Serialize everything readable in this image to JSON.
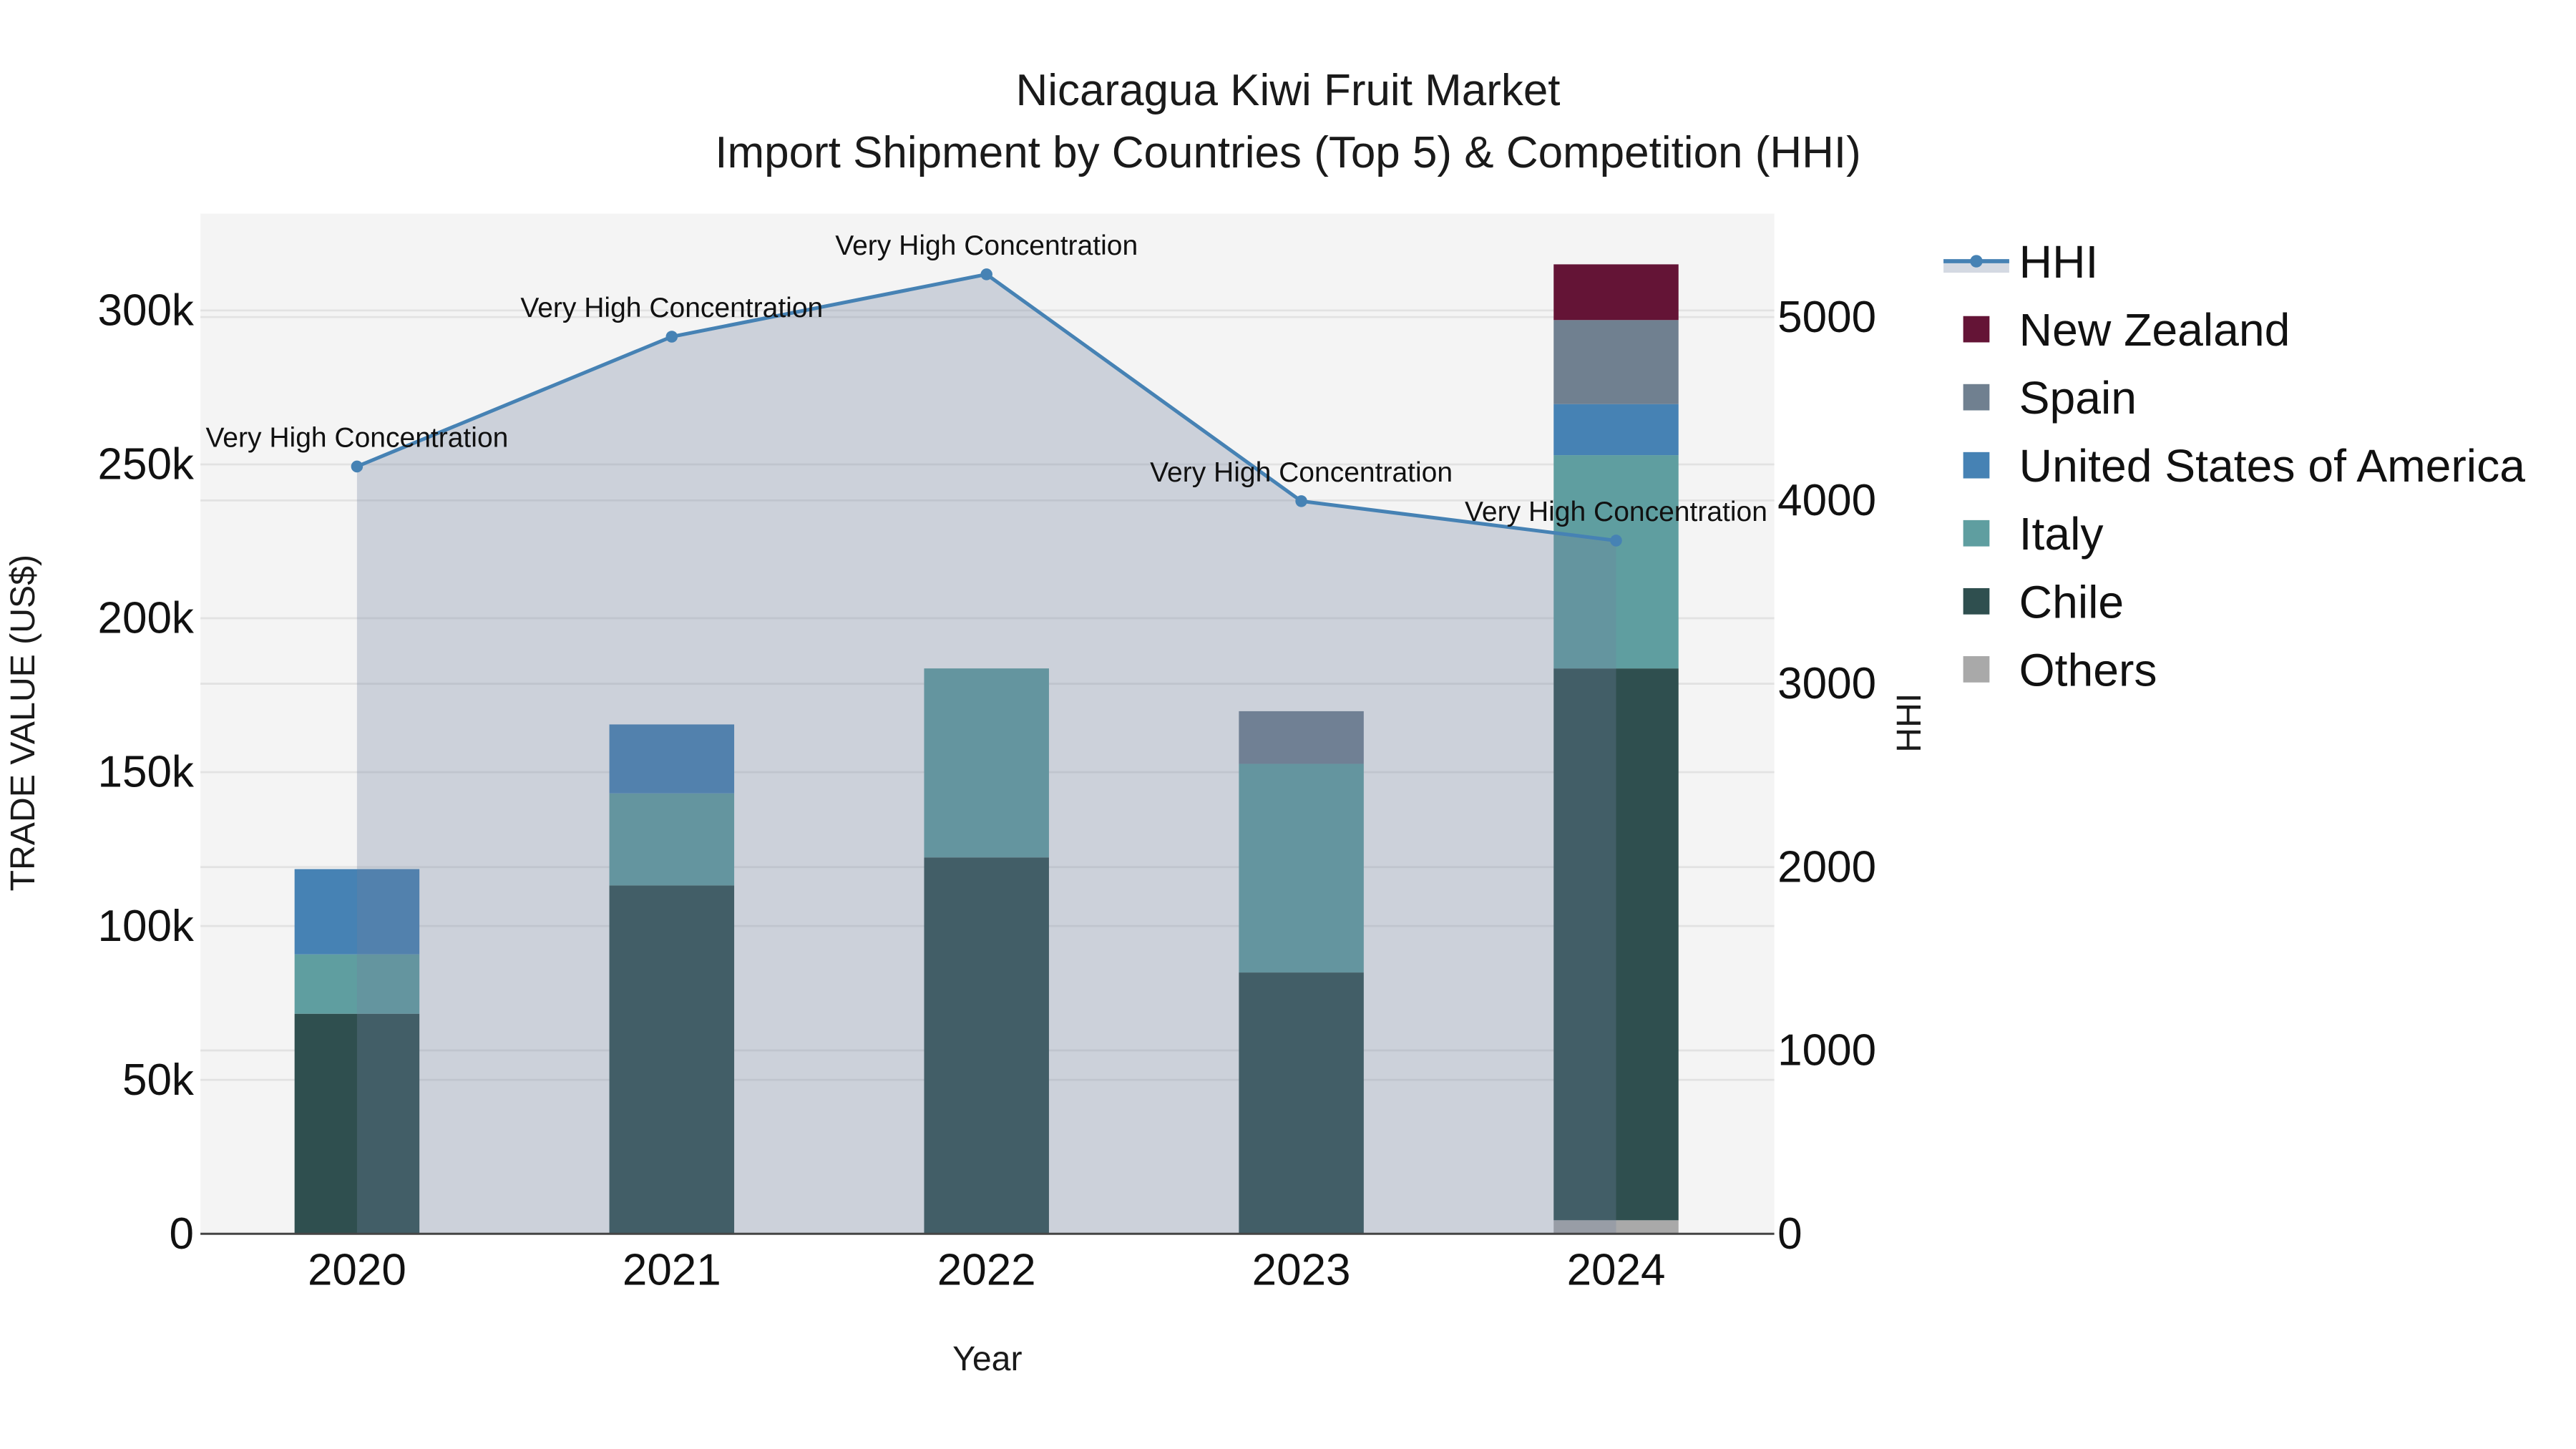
{
  "chart_data": {
    "type": "bar",
    "subtype": "stacked bar with secondary-axis line/area",
    "title": "Nicaragua Kiwi Fruit Market",
    "subtitle": "Import Shipment by Countries (Top 5) & Competition (HHI)",
    "xlabel": "Year",
    "ylabel": "TRADE VALUE (US$)",
    "y2label": "HHI",
    "categories": [
      "2020",
      "2021",
      "2022",
      "2023",
      "2024"
    ],
    "ylim": [
      0,
      330000
    ],
    "y_ticks": [
      0,
      50000,
      100000,
      150000,
      200000,
      250000,
      300000
    ],
    "y_tick_labels": [
      "0",
      "50k",
      "100k",
      "150k",
      "200k",
      "250k",
      "300k"
    ],
    "y2lim": [
      0,
      5560
    ],
    "y2_ticks": [
      0,
      1000,
      2000,
      3000,
      4000,
      5000
    ],
    "y2_tick_labels": [
      "0",
      "1000",
      "2000",
      "3000",
      "4000",
      "5000"
    ],
    "grid": true,
    "legend_position": "right",
    "series": [
      {
        "name": "Others",
        "color": "#a9a9a9",
        "values": [
          0,
          0,
          0,
          0,
          4400
        ]
      },
      {
        "name": "Chile",
        "color": "#2f4f4f",
        "values": [
          71500,
          113200,
          122300,
          84900,
          179300
        ]
      },
      {
        "name": "Italy",
        "color": "#5f9ea0",
        "values": [
          19300,
          29900,
          61400,
          67800,
          69300
        ]
      },
      {
        "name": "United States of America",
        "color": "#4682b4",
        "values": [
          27700,
          22400,
          0,
          0,
          16600
        ]
      },
      {
        "name": "Spain",
        "color": "#708090",
        "values": [
          0,
          0,
          0,
          17100,
          27300
        ]
      },
      {
        "name": "New Zealand",
        "color": "#641436",
        "values": [
          0,
          0,
          0,
          0,
          18100
        ]
      }
    ],
    "line_series": {
      "name": "HHI",
      "axis": "right",
      "color": "#4682b4",
      "fill_color": "rgba(112,128,160,0.30)",
      "values": [
        4185,
        4893,
        5233,
        3996,
        3781
      ],
      "annotations": [
        "Very High Concentration",
        "Very High Concentration",
        "Very High Concentration",
        "Very High Concentration",
        "Very High Concentration"
      ]
    }
  },
  "legend": {
    "items": [
      {
        "label": "HHI",
        "color": "#4682b4",
        "kind": "line"
      },
      {
        "label": "New Zealand",
        "color": "#641436",
        "kind": "box"
      },
      {
        "label": "Spain",
        "color": "#708090",
        "kind": "box"
      },
      {
        "label": "United States of America",
        "color": "#4682b4",
        "kind": "box"
      },
      {
        "label": "Italy",
        "color": "#5f9ea0",
        "kind": "box"
      },
      {
        "label": "Chile",
        "color": "#2f4f4f",
        "kind": "box"
      },
      {
        "label": "Others",
        "color": "#a9a9a9",
        "kind": "box"
      }
    ]
  }
}
